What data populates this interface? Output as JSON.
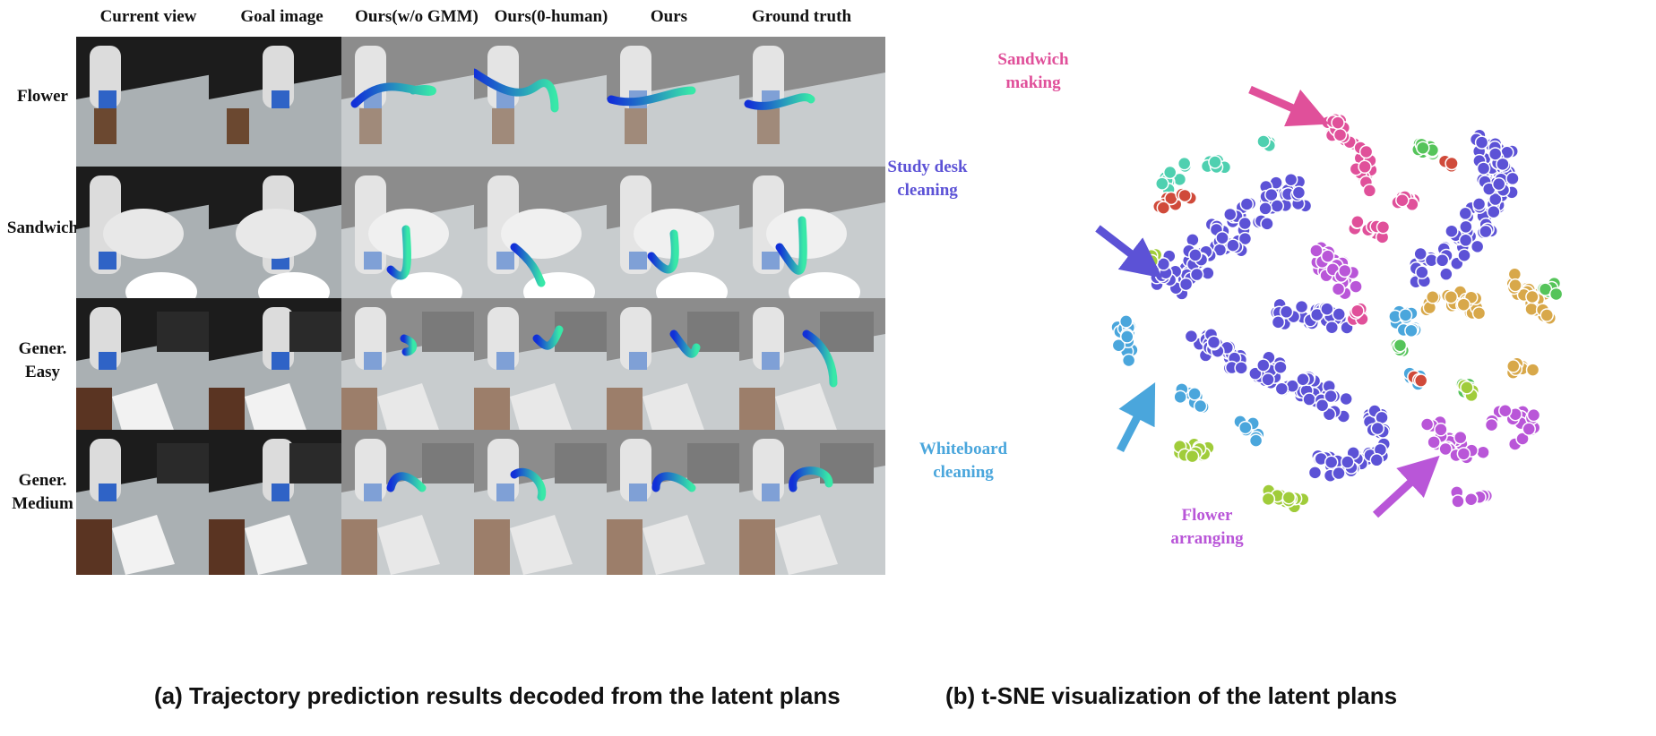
{
  "panel_a": {
    "columns": [
      "Current view",
      "Goal image",
      "Ours(w/o GMM)",
      "Ours(0-human)",
      "Ours",
      "Ground truth"
    ],
    "rows": [
      {
        "label_lines": [
          "Flower"
        ]
      },
      {
        "label_lines": [
          "Sandwich"
        ]
      },
      {
        "label_lines": [
          "Gener.",
          "Easy"
        ]
      },
      {
        "label_lines": [
          "Gener.",
          "Medium"
        ]
      }
    ],
    "caption": "(a) Trajectory prediction results decoded from the latent plans"
  },
  "panel_b": {
    "caption": "(b) t-SNE visualization of the latent plans",
    "labels": {
      "sandwich": [
        "Sandwich",
        "making"
      ],
      "study": [
        "Study desk",
        "cleaning"
      ],
      "whiteboard": [
        "Whiteboard",
        "cleaning"
      ],
      "flower": [
        "Flower",
        "arranging"
      ]
    },
    "colors": {
      "sandwich": "#e0509a",
      "study": "#5c52d6",
      "whiteboard": "#4aa6dc",
      "flower": "#b956d8",
      "gold": "#d8a84a",
      "green": "#55c45a",
      "teal": "#4fd0b0",
      "red": "#d04a3a",
      "lime": "#a0cc3a"
    }
  }
}
